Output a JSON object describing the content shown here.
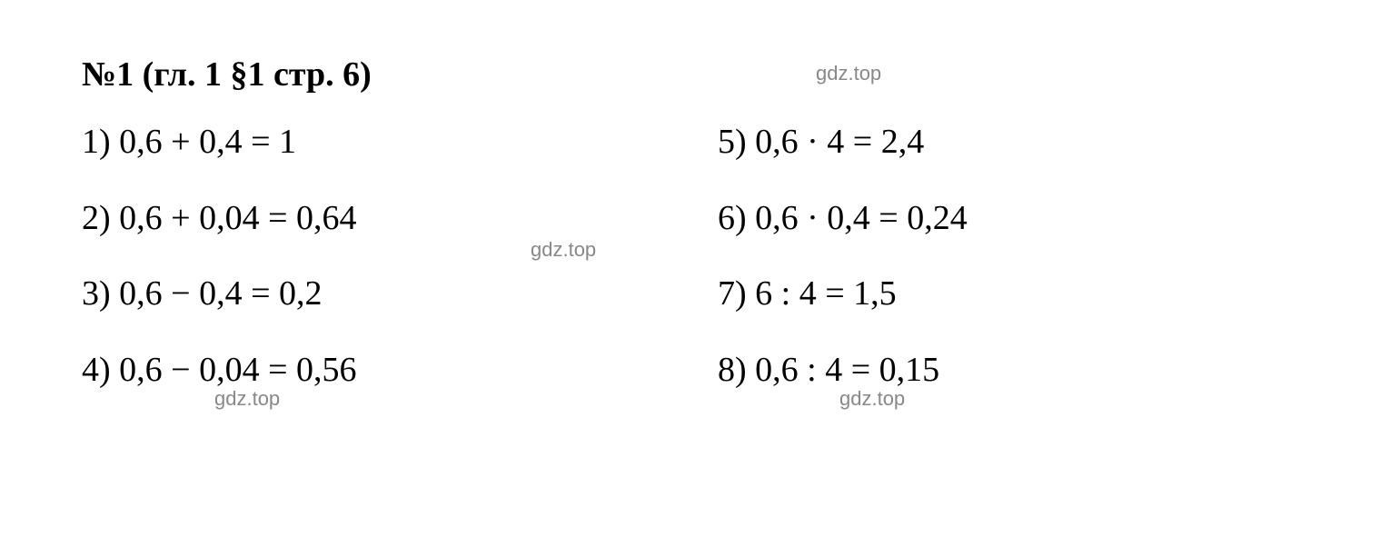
{
  "title": "№1 (гл. 1 §1 стр. 6)",
  "left_column": [
    "1) 0,6 + 0,4 = 1",
    "2) 0,6 + 0,04 = 0,64",
    "3) 0,6 − 0,4 = 0,2",
    "4) 0,6 − 0,04 = 0,56"
  ],
  "right_column": [
    "5) 0,6 · 4 = 2,4",
    "6) 0,6 · 0,4 = 0,24",
    "7) 6 : 4 = 1,5",
    "8) 0,6 : 4 = 0,15"
  ],
  "watermark_text": "gdz.top",
  "styling": {
    "background_color": "#ffffff",
    "text_color": "#000000",
    "watermark_color": "#888888",
    "title_fontsize": 38,
    "equation_fontsize": 38,
    "watermark_fontsize": 22,
    "font_family": "Times New Roman",
    "watermark_font_family": "Arial",
    "title_weight": "bold",
    "equation_weight": "normal"
  }
}
